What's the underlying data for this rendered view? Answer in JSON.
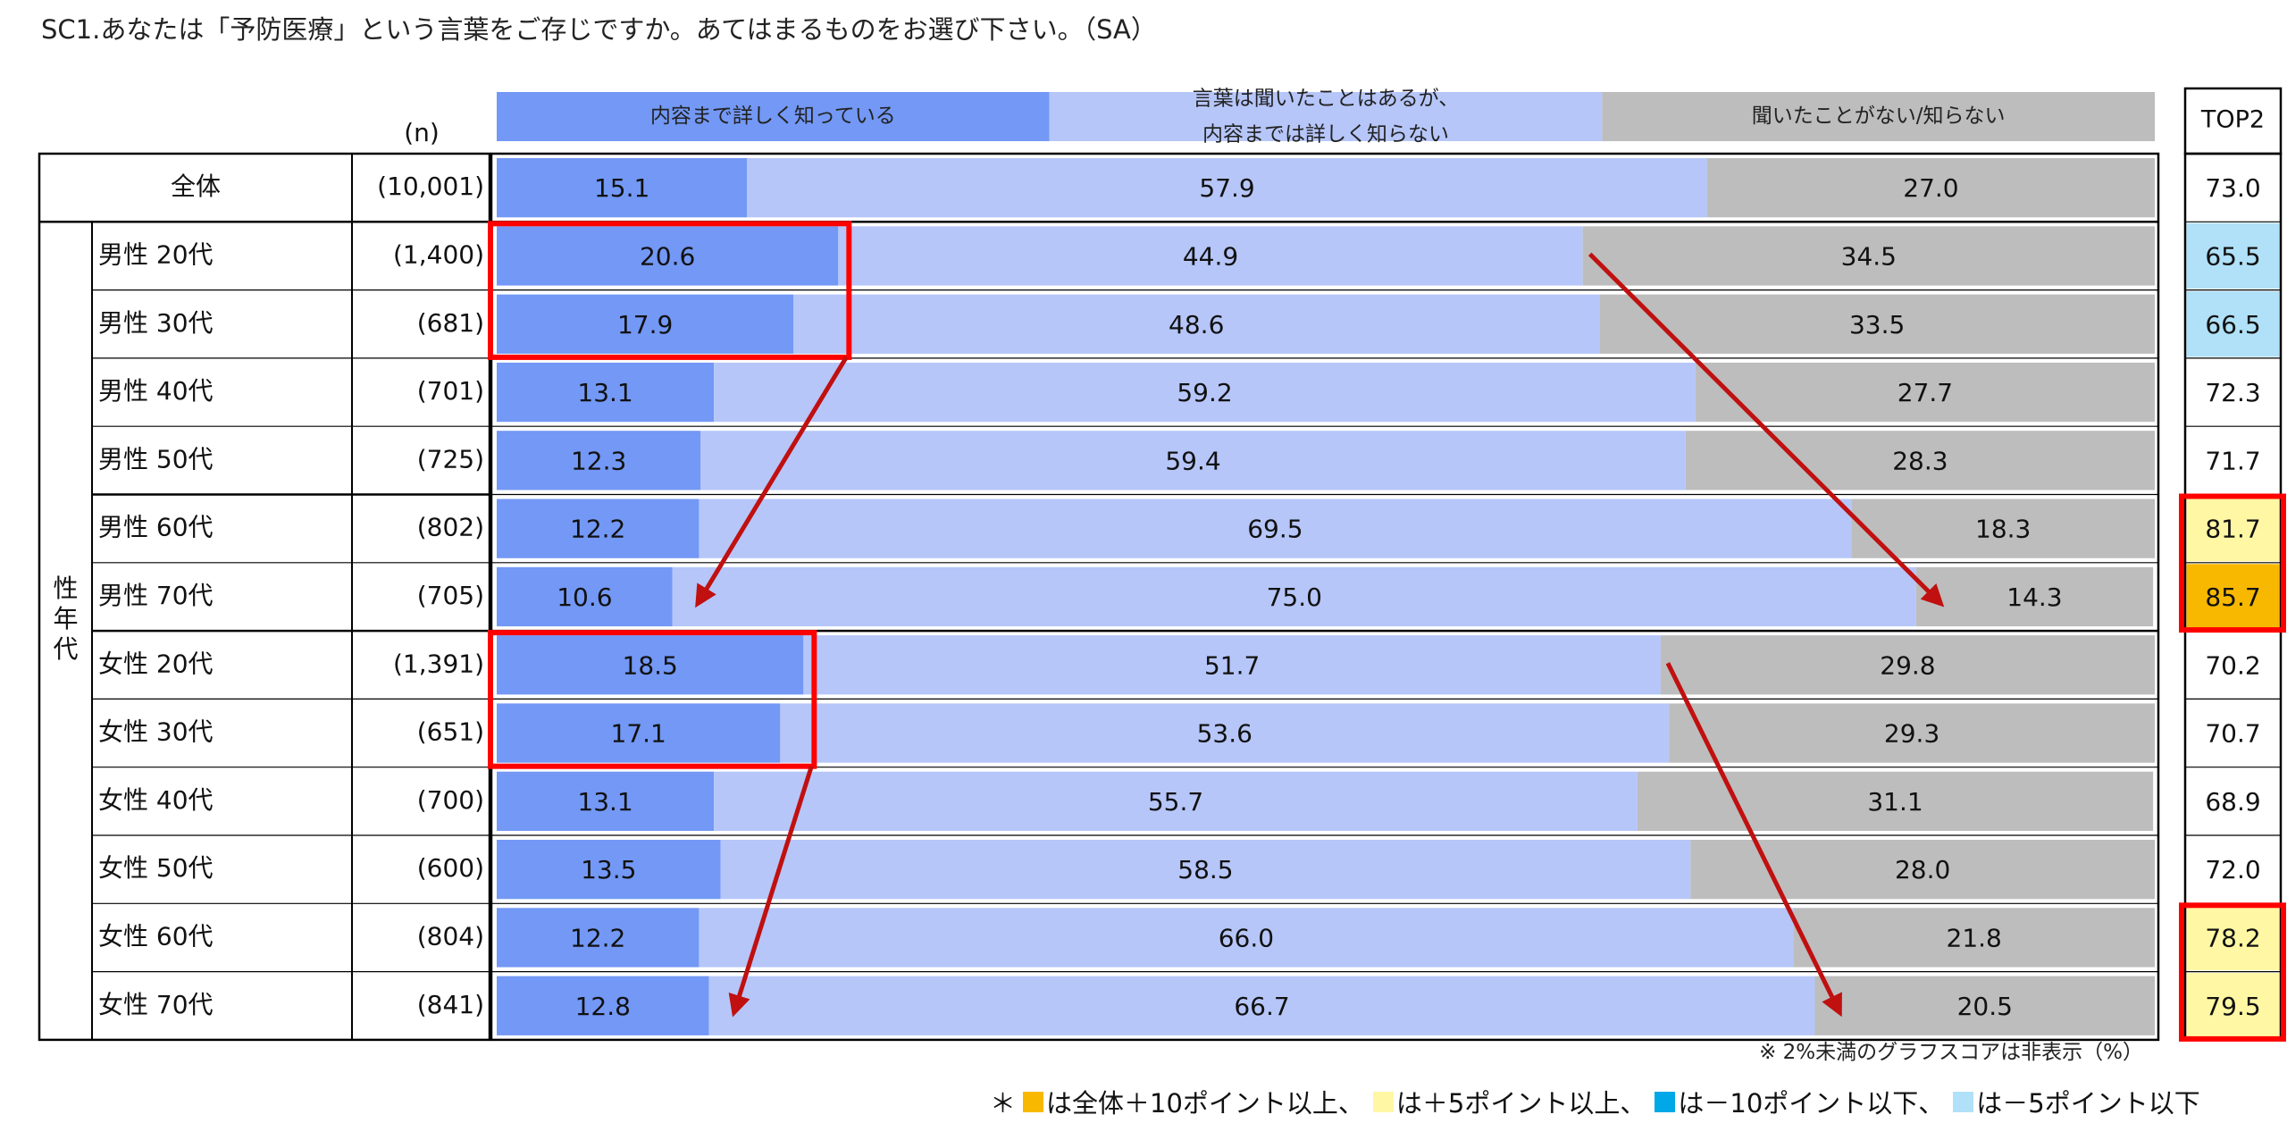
{
  "title": "SC1.あなたは「予防医療」という言葉をご存じですか。あてはまるものをお選び下さい。（SA）",
  "colors": {
    "detailed": "#7398f5",
    "heard": "#b6c6f9",
    "unknown": "#bdbdbd",
    "plus10": "#f8b800",
    "plus5": "#fff7a4",
    "minus10": "#00a8e8",
    "minus5": "#b0e1f8",
    "highlight_box": "#ff0000",
    "arrow": "#c01010"
  },
  "header": {
    "n_label": "(n)",
    "top2_label": "TOP2",
    "group_label": "性\n年\n代"
  },
  "note": "※ 2%未満のグラフスコアは非表示（%）",
  "legend_note": {
    "prefix": "＊",
    "plus10_text": "は全体＋10ポイント以上、",
    "plus5_text": "は＋5ポイント以上、",
    "minus10_text": "は－10ポイント以下、",
    "minus5_text": "は－5ポイント以下"
  },
  "chart_data": {
    "type": "bar",
    "orientation": "horizontal",
    "stacked": true,
    "percent": true,
    "xlim": [
      0,
      100
    ],
    "categories": [
      "全体",
      "男性 20代",
      "男性 30代",
      "男性 40代",
      "男性 50代",
      "男性 60代",
      "男性 70代",
      "女性 20代",
      "女性 30代",
      "女性 40代",
      "女性 50代",
      "女性 60代",
      "女性 70代"
    ],
    "n": [
      "(10,001)",
      "(1,400)",
      "(681)",
      "(701)",
      "(725)",
      "(802)",
      "(705)",
      "(1,391)",
      "(651)",
      "(700)",
      "(600)",
      "(804)",
      "(841)"
    ],
    "series": [
      {
        "name": "内容まで詳しく知っている",
        "color": "#7398f5",
        "values": [
          15.1,
          20.6,
          17.9,
          13.1,
          12.3,
          12.2,
          10.6,
          18.5,
          17.1,
          13.1,
          13.5,
          12.2,
          12.8
        ]
      },
      {
        "name": "言葉は聞いたことはあるが、\n内容までは詳しく知らない",
        "color": "#b6c6f9",
        "values": [
          57.9,
          44.9,
          48.6,
          59.2,
          59.4,
          69.5,
          75.0,
          51.7,
          53.6,
          55.7,
          58.5,
          66.0,
          66.7
        ]
      },
      {
        "name": "聞いたことがない/知らない",
        "color": "#bdbdbd",
        "values": [
          27.0,
          34.5,
          33.5,
          27.7,
          28.3,
          18.3,
          14.3,
          29.8,
          29.3,
          31.1,
          28.0,
          21.8,
          20.5
        ]
      }
    ],
    "top2": {
      "label": "TOP2",
      "values": [
        73.0,
        65.5,
        66.5,
        72.3,
        71.7,
        81.7,
        85.7,
        70.2,
        70.7,
        68.9,
        72.0,
        78.2,
        79.5
      ],
      "highlight": [
        "none",
        "minus5",
        "minus5",
        "none",
        "none",
        "plus5",
        "plus10",
        "none",
        "none",
        "none",
        "none",
        "plus5",
        "plus5"
      ]
    },
    "annotations": {
      "boxes": [
        {
          "type": "segment",
          "series": 0,
          "rows": [
            1,
            2
          ]
        },
        {
          "type": "segment",
          "series": 0,
          "rows": [
            7,
            8
          ]
        },
        {
          "type": "top2",
          "rows": [
            5,
            6
          ]
        },
        {
          "type": "top2",
          "rows": [
            11,
            12
          ]
        }
      ],
      "arrows": [
        {
          "from": "box",
          "rows": [
            1,
            2
          ],
          "to_series": 0,
          "to_row": 6
        },
        {
          "from_series": 2,
          "from_row": 1,
          "to_series": 2,
          "to_row": 6
        },
        {
          "from": "box",
          "rows": [
            7,
            8
          ],
          "to_series": 0,
          "to_row": 12
        },
        {
          "from_series": 2,
          "from_row": 7,
          "to_series": 2,
          "to_row": 12
        }
      ]
    }
  }
}
